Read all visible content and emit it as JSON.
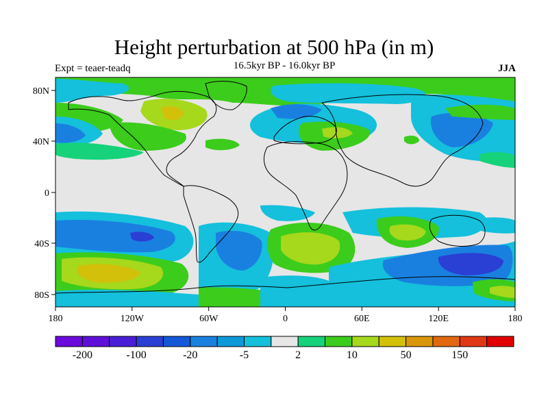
{
  "title": "Height perturbation at 500 hPa (in m)",
  "subtitle": "16.5kyr BP - 16.0kyr BP",
  "experiment": "Expt = teaer-teadq",
  "season": "JJA",
  "axes": {
    "lat_ticks": [
      "80N",
      "40N",
      "0",
      "40S",
      "80S"
    ],
    "lon_ticks": [
      "180",
      "120W",
      "60W",
      "0",
      "60E",
      "120E",
      "180"
    ]
  },
  "colorbar": {
    "colors": [
      "#6a0adc",
      "#5f10d8",
      "#4a1ed6",
      "#2a3fd4",
      "#1458d8",
      "#1a80e0",
      "#0d98d8",
      "#14c0dc",
      "#e6e6e6",
      "#16d27a",
      "#3ccc1c",
      "#a6d81c",
      "#d2c00a",
      "#d9960a",
      "#e06810",
      "#e03814",
      "#e00000"
    ],
    "labels": [
      "-200",
      "-100",
      "-20",
      "-5",
      "2",
      "10",
      "50",
      "150"
    ]
  },
  "palette": {
    "neutral": "#e6e6e6",
    "lightblue": "#14c0dc",
    "blue": "#1a80e0",
    "deepblue": "#2a3fd4",
    "green": "#16d27a",
    "lime": "#3ccc1c",
    "yellowgreen": "#a6d81c",
    "gold": "#d2c00a"
  }
}
